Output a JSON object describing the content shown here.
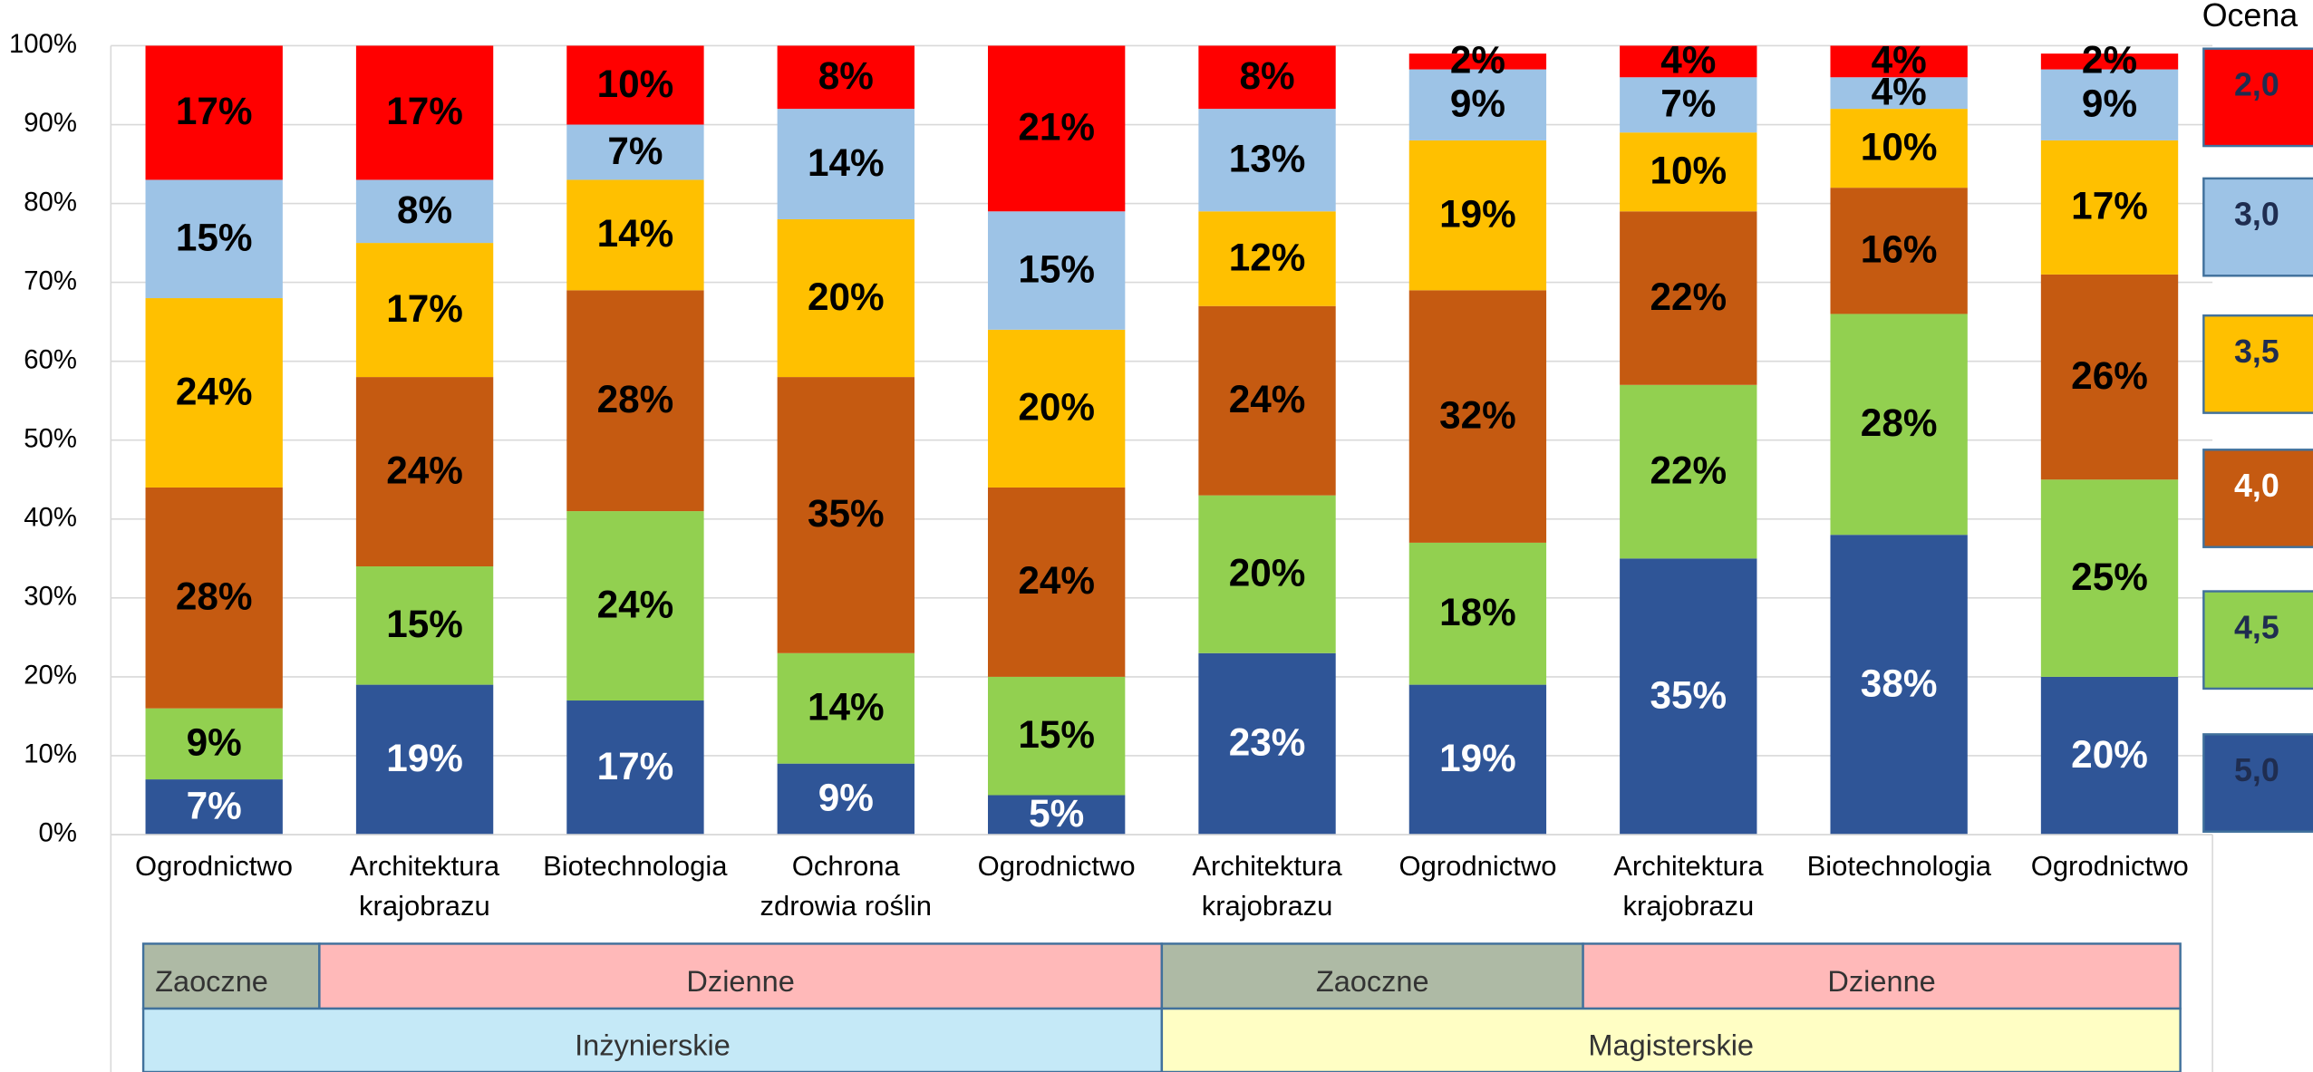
{
  "chart_data": {
    "type": "bar",
    "stacked": true,
    "categories": [
      "Ogrodnictwo",
      "Architektura krajobrazu",
      "Biotechnologia",
      "Ochrona zdrowia roślin",
      "Ogrodnictwo",
      "Architektura krajobrazu",
      "Ogrodnictwo",
      "Architektura krajobrazu",
      "Biotechnologia",
      "Ogrodnictwo"
    ],
    "series": [
      {
        "name": "5,0",
        "color": "#2f5597",
        "label_color": "#ffffff",
        "values": [
          7,
          19,
          17,
          9,
          5,
          23,
          19,
          35,
          38,
          20
        ],
        "value_labels": [
          "7%",
          "19%",
          "17%",
          "9%",
          "5%",
          "23%",
          "19%",
          "35%",
          "38%",
          "20%"
        ]
      },
      {
        "name": "4,5",
        "color": "#92d050",
        "label_color": "#000000",
        "values": [
          9,
          15,
          24,
          14,
          15,
          20,
          18,
          22,
          28,
          25
        ],
        "value_labels": [
          "9%",
          "15%",
          "24%",
          "14%",
          "15%",
          "20%",
          "18%",
          "22%",
          "28%",
          "25%"
        ]
      },
      {
        "name": "4,0",
        "color": "#c55a11",
        "label_color": "#000000",
        "values": [
          28,
          24,
          28,
          35,
          24,
          24,
          32,
          22,
          16,
          26
        ],
        "value_labels": [
          "28%",
          "24%",
          "28%",
          "35%",
          "24%",
          "24%",
          "32%",
          "22%",
          "16%",
          "26%"
        ]
      },
      {
        "name": "3,5",
        "color": "#ffc000",
        "label_color": "#000000",
        "values": [
          24,
          17,
          14,
          20,
          20,
          12,
          19,
          10,
          10,
          17
        ],
        "value_labels": [
          "24%",
          "17%",
          "14%",
          "20%",
          "20%",
          "12%",
          "19%",
          "10%",
          "10%",
          "17%"
        ]
      },
      {
        "name": "3,0",
        "color": "#9dc3e6",
        "label_color": "#000000",
        "values": [
          15,
          8,
          7,
          14,
          15,
          13,
          9,
          7,
          4,
          9
        ],
        "value_labels": [
          "15%",
          "8%",
          "7%",
          "14%",
          "15%",
          "13%",
          "9%",
          "7%",
          "4%",
          "9%"
        ]
      },
      {
        "name": "2,0",
        "color": "#ff0000",
        "label_color": "#000000",
        "values": [
          17,
          17,
          10,
          8,
          21,
          8,
          2,
          4,
          4,
          2
        ],
        "value_labels": [
          "17%",
          "17%",
          "10%",
          "8%",
          "21%",
          "8%",
          "2%",
          "4%",
          "4%",
          "2%"
        ]
      }
    ],
    "ylim": [
      0,
      100
    ],
    "yticks": [
      {
        "value": 0,
        "label": "0%"
      },
      {
        "value": 10,
        "label": "10%"
      },
      {
        "value": 20,
        "label": "20%"
      },
      {
        "value": 30,
        "label": "30%"
      },
      {
        "value": 40,
        "label": "40%"
      },
      {
        "value": 50,
        "label": "50%"
      },
      {
        "value": 60,
        "label": "60%"
      },
      {
        "value": 70,
        "label": "70%"
      },
      {
        "value": 80,
        "label": "80%"
      },
      {
        "value": 90,
        "label": "90%"
      },
      {
        "value": 100,
        "label": "100%"
      }
    ],
    "grid": true,
    "legend": "right",
    "legend_title": "Ocena",
    "group_rows": [
      [
        "Zaoczne",
        "Dzienne",
        "Zaoczne",
        "Dzienne"
      ],
      [
        "Inżynierskie",
        "Magisterskie"
      ]
    ]
  }
}
